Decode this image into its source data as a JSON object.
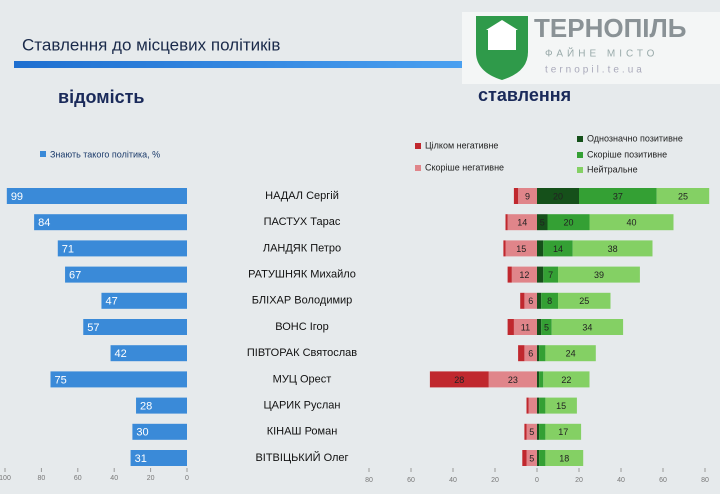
{
  "header": {
    "title": "Ставлення до місцевих політиків",
    "logo": {
      "name": "ТЕРНОПІЛЬ",
      "slogan": "ФАЙНЕ МІСТО",
      "url": "ternopil.te.ua"
    }
  },
  "chart_data": [
    {
      "type": "hbar",
      "title": "відомість",
      "categories": [
        "НАДАЛ Сергій",
        "ПАСТУХ Тарас",
        "ЛАНДЯК Петро",
        "РАТУШНЯК Михайло",
        "БЛІХАР Володимир",
        "ВОНС Ігор",
        "ПІВТОРАК Святослав",
        "МУЦ Орест",
        "ЦАРИК Руслан",
        "КІНАШ Роман",
        "ВІТВІЦЬКИЙ Олег"
      ],
      "series": [
        {
          "name": "Знають такого політика, %",
          "color": "#3a8ad8",
          "values": [
            99,
            84,
            71,
            67,
            47,
            57,
            42,
            75,
            28,
            30,
            31
          ]
        }
      ],
      "xlim": [
        100,
        0
      ],
      "xticks": [
        100,
        80,
        60,
        40,
        20,
        0
      ]
    },
    {
      "type": "diverging",
      "title": "ставлення",
      "series": [
        {
          "name": "Скоріше негативне",
          "color": "#e0858a",
          "side": "left",
          "values": [
            9,
            14,
            15,
            12,
            6,
            11,
            6,
            23,
            4,
            5,
            5
          ]
        },
        {
          "name": "Цілком негативне",
          "color": "#c0282e",
          "side": "left",
          "values": [
            2,
            1,
            1,
            2,
            2,
            3,
            3,
            28,
            1,
            1,
            2
          ]
        },
        {
          "name": "Однозначно позитивне",
          "color": "#15501a",
          "side": "right",
          "values": [
            20,
            5,
            3,
            3,
            2,
            2,
            1,
            1,
            1,
            1,
            1
          ]
        },
        {
          "name": "Скоріше позитивне",
          "color": "#34a034",
          "side": "right",
          "values": [
            37,
            20,
            14,
            7,
            8,
            5,
            3,
            2,
            3,
            3,
            3
          ]
        },
        {
          "name": "Нейтральне",
          "color": "#84d064",
          "side": "right",
          "values": [
            25,
            40,
            38,
            39,
            25,
            34,
            24,
            22,
            15,
            17,
            18
          ]
        }
      ],
      "xlim": [
        -80,
        80
      ],
      "xticks": [
        {
          "value": -80,
          "label": "80"
        },
        {
          "value": -60,
          "label": "60"
        },
        {
          "value": -40,
          "label": "40"
        },
        {
          "value": -20,
          "label": "20"
        },
        0,
        20,
        40,
        60,
        80
      ]
    }
  ]
}
